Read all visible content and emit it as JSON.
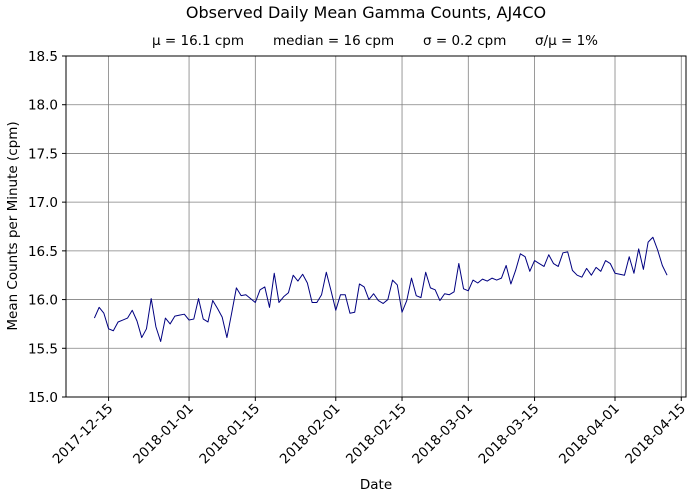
{
  "chart_data": {
    "type": "line",
    "title": "Observed Daily Mean Gamma Counts, AJ4CO",
    "subtitle": {
      "mean": "μ = 16.1 cpm",
      "median": "median = 16 cpm",
      "sigma": "σ = 0.2 cpm",
      "cv": "σ/μ = 1%"
    },
    "xlabel": "Date",
    "ylabel": "Mean Counts per Minute (cpm)",
    "xlim": [
      "2017-12-06",
      "2018-04-16"
    ],
    "ylim": [
      15.0,
      18.5
    ],
    "grid": true,
    "line_color": "#000080",
    "x_ticks": [
      "2017-12-15",
      "2018-01-01",
      "2018-01-15",
      "2018-02-01",
      "2018-02-15",
      "2018-03-01",
      "2018-03-15",
      "2018-04-01",
      "2018-04-15"
    ],
    "y_ticks": [
      "15.0",
      "15.5",
      "16.0",
      "16.5",
      "17.0",
      "17.5",
      "18.0",
      "18.5"
    ],
    "x_start": "2017-12-12",
    "series": [
      {
        "values": [
          15.81,
          15.92,
          15.86,
          15.7,
          15.68,
          15.77,
          15.79,
          15.81,
          15.89,
          15.78,
          15.61,
          15.7,
          16.01,
          15.72,
          15.57,
          15.81,
          15.75,
          15.83,
          15.84,
          15.85,
          15.79,
          15.8,
          16.01,
          15.8,
          15.77,
          15.99,
          15.91,
          15.82,
          15.61,
          15.86,
          16.12,
          16.04,
          16.05,
          16.01,
          15.97,
          16.1,
          16.13,
          15.92,
          16.27,
          15.97,
          16.03,
          16.07,
          16.25,
          16.19,
          16.26,
          16.17,
          15.97,
          15.97,
          16.05,
          16.28,
          16.09,
          15.89,
          16.05,
          16.05,
          15.86,
          15.87,
          16.16,
          16.13,
          16.0,
          16.06,
          15.99,
          15.96,
          16.0,
          16.2,
          16.15,
          15.87,
          15.99,
          16.22,
          16.04,
          16.02,
          16.28,
          16.12,
          16.1,
          15.99,
          16.06,
          16.05,
          16.08,
          16.37,
          16.11,
          16.09,
          16.2,
          16.17,
          16.21,
          16.19,
          16.22,
          16.2,
          16.22,
          16.35,
          16.16,
          16.3,
          16.47,
          16.44,
          16.29,
          16.4,
          16.37,
          16.34,
          16.46,
          16.37,
          16.34,
          16.48,
          16.49,
          16.3,
          16.25,
          16.23,
          16.32,
          16.25,
          16.33,
          16.29,
          16.4,
          16.37,
          16.27,
          16.26,
          16.25,
          16.44,
          16.27,
          16.52,
          16.31,
          16.59,
          16.64,
          16.51,
          16.35,
          16.25
        ]
      }
    ]
  }
}
